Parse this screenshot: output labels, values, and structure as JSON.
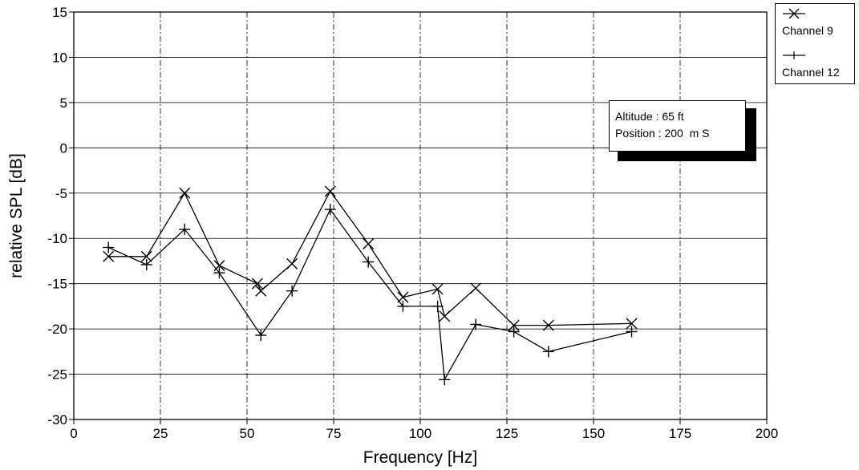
{
  "chart_data": {
    "type": "line",
    "xlabel": "Frequency [Hz]",
    "ylabel": "relative SPL [dB]",
    "xlim": [
      0,
      200
    ],
    "ylim": [
      -30,
      15
    ],
    "xticks": [
      0,
      25,
      50,
      75,
      100,
      125,
      150,
      175,
      200
    ],
    "yticks": [
      15,
      10,
      5,
      0,
      -5,
      -10,
      -15,
      -20,
      -25,
      -30
    ],
    "grid": true,
    "legend_position": "top-right, outside plot",
    "series": [
      {
        "name": "Channel 9",
        "marker": "x",
        "color": "#000000",
        "x": [
          10,
          21,
          32,
          42,
          53,
          54,
          63,
          74,
          85,
          95,
          105,
          107,
          116,
          127,
          137,
          161
        ],
        "y": [
          -12,
          -12,
          -5,
          -13,
          -15,
          -15.8,
          -12.8,
          -4.8,
          -10.6,
          -16.5,
          -15.6,
          -18.6,
          -15.5,
          -19.6,
          -19.6,
          -19.4
        ]
      },
      {
        "name": "Channel 12",
        "marker": "+",
        "color": "#000000",
        "x": [
          10,
          21,
          32,
          42,
          54,
          63,
          74,
          85,
          95,
          105,
          107,
          116,
          127,
          137,
          161
        ],
        "y": [
          -11,
          -12.9,
          -9,
          -13.8,
          -20.7,
          -15.8,
          -6.8,
          -12.6,
          -17.5,
          -17.5,
          -25.6,
          -19.5,
          -20.3,
          -22.5,
          -20.3
        ]
      }
    ],
    "annotation": [
      "Altitude : 65 ft",
      "Position : 200  m S"
    ]
  }
}
